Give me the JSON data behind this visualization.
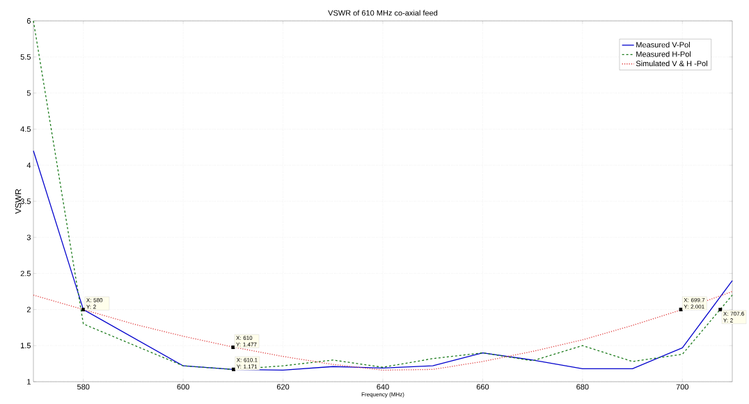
{
  "chart_data": {
    "type": "line",
    "title": "VSWR of 610 MHz co-axial feed",
    "xlabel": "Frequency (MHz)",
    "ylabel": "VSWR",
    "x": [
      570,
      580,
      590,
      600,
      610,
      620,
      630,
      640,
      650,
      660,
      670,
      680,
      690,
      700,
      710
    ],
    "series": [
      {
        "name": "Measured V-Pol",
        "color": "#0000cc",
        "line_style": "solid",
        "x": [
          570,
          580,
          600,
          610,
          620,
          630,
          640,
          650,
          660,
          670,
          680,
          690,
          700,
          710
        ],
        "values": [
          4.2,
          2.0,
          1.22,
          1.17,
          1.16,
          1.21,
          1.19,
          1.22,
          1.4,
          1.3,
          1.18,
          1.18,
          1.47,
          2.4
        ]
      },
      {
        "name": "Measured H-Pol",
        "color": "#1a7a1a",
        "line_style": "dashed",
        "x": [
          570,
          580,
          600,
          610,
          620,
          630,
          640,
          650,
          660,
          670,
          680,
          690,
          700,
          710
        ],
        "values": [
          6.0,
          1.8,
          1.22,
          1.17,
          1.22,
          1.3,
          1.2,
          1.32,
          1.4,
          1.29,
          1.5,
          1.28,
          1.38,
          2.2
        ]
      },
      {
        "name": "Simulated V & H -Pol",
        "color": "#e04040",
        "line_style": "dotted",
        "values": [
          2.2,
          2.0,
          1.8,
          1.63,
          1.48,
          1.35,
          1.24,
          1.16,
          1.17,
          1.28,
          1.42,
          1.58,
          1.78,
          2.0,
          2.25
        ]
      }
    ],
    "annotations": [
      {
        "text": "X: 580 Y: 2",
        "x": 580,
        "y": 2
      },
      {
        "text": "X: 610 Y: 1.477",
        "x": 610,
        "y": 1.477
      },
      {
        "text": "X: 610.1 Y: 1.171",
        "x": 610.1,
        "y": 1.171
      },
      {
        "text": "X: 699.7 Y: 2.001",
        "x": 699.7,
        "y": 2.001
      },
      {
        "text": "X: 707.6 Y: 2",
        "x": 707.6,
        "y": 2
      }
    ],
    "xlim": [
      570,
      710
    ],
    "xticks": [
      580,
      600,
      620,
      640,
      660,
      680,
      700
    ],
    "ylim": [
      1,
      6
    ],
    "yticks": [
      1,
      1.5,
      2,
      2.5,
      3,
      3.5,
      4,
      4.5,
      5,
      5.5,
      6
    ],
    "grid": true,
    "legend": "top right",
    "marker": "none"
  }
}
